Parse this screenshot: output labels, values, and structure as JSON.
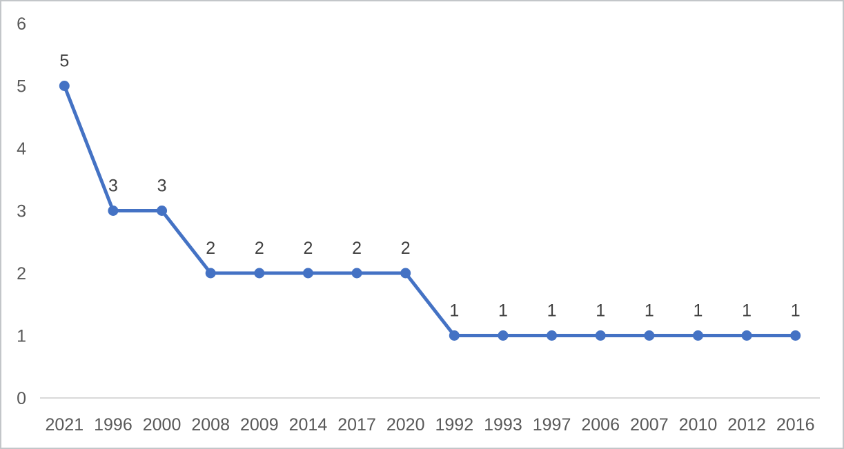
{
  "chart_data": {
    "type": "line",
    "title": "",
    "xlabel": "",
    "ylabel": "",
    "categories": [
      "2021",
      "1996",
      "2000",
      "2008",
      "2009",
      "2014",
      "2017",
      "2020",
      "1992",
      "1993",
      "1997",
      "2006",
      "2007",
      "2010",
      "2012",
      "2016"
    ],
    "values": [
      5,
      3,
      3,
      2,
      2,
      2,
      2,
      2,
      1,
      1,
      1,
      1,
      1,
      1,
      1,
      1
    ],
    "data_labels": [
      "5",
      "3",
      "3",
      "2",
      "2",
      "2",
      "2",
      "2",
      "1",
      "1",
      "1",
      "1",
      "1",
      "1",
      "1",
      "1"
    ],
    "ylim": [
      0,
      6
    ],
    "y_ticks": [
      "0",
      "1",
      "2",
      "3",
      "4",
      "5",
      "6"
    ],
    "grid": false,
    "legend_position": "none",
    "series_name": "",
    "colors": {
      "line": "#4472C4",
      "marker": "#4472C4",
      "axis_line": "#d9d9d9",
      "axis_tick_label": "#595959",
      "data_label": "#404040",
      "frame_border": "#c3c6c9",
      "background": "#ffffff"
    }
  }
}
